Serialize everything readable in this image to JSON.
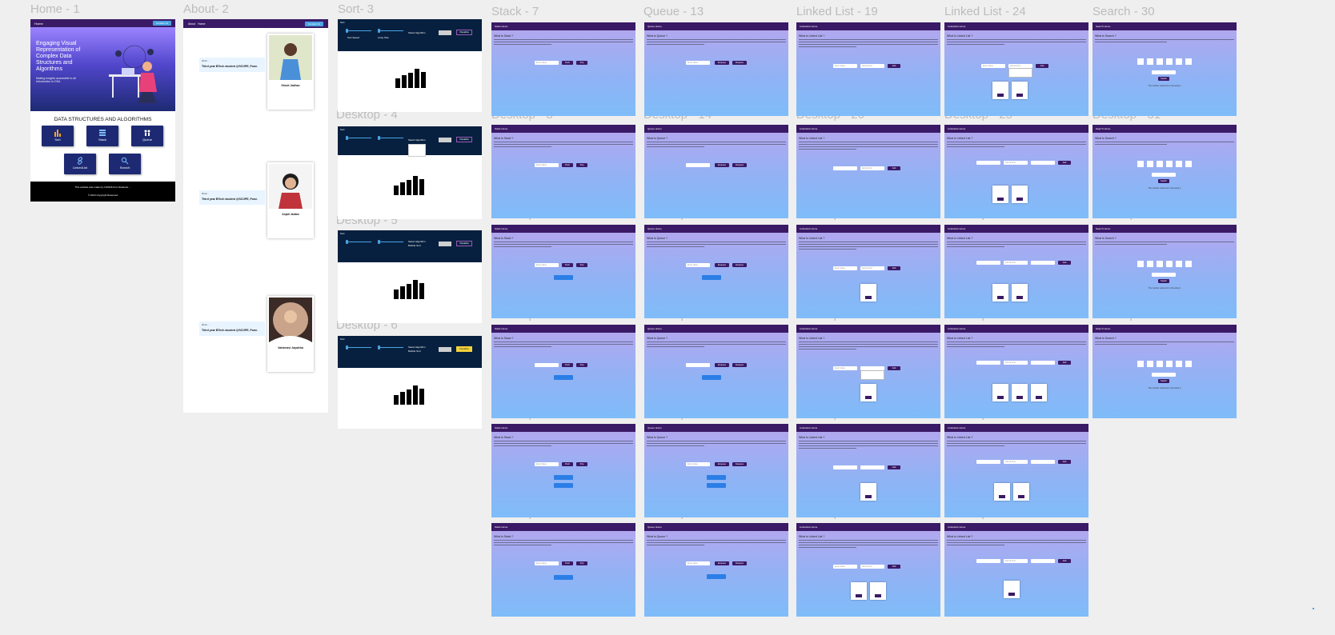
{
  "frame_labels": {
    "home": "Home - 1",
    "about": "About- 2",
    "sort": "Sort- 3",
    "stack": "Stack - 7",
    "queue": "Queue - 13",
    "linked19": "Linked List - 19",
    "linked24": "Linked List - 24",
    "search": "Search - 30",
    "d4": "Desktop - 4",
    "d5": "Desktop - 5",
    "d6": "Desktop - 6",
    "d8": "Desktop - 8",
    "d9": "Desktop - 9",
    "d10": "Desktop - 10",
    "d11": "Desktop - 11",
    "d12": "Desktop - 12",
    "d14": "Desktop - 14",
    "d15": "Desktop - 15",
    "d16": "Desktop - 16",
    "d17": "Desktop - 17",
    "d18": "Desktop - 18",
    "d20": "Desktop - 20",
    "d21": "Desktop - 21",
    "d22": "Desktop - 22",
    "d23": "Desktop - 23",
    "d24": "Desktop - 24",
    "d25": "Desktop - 25",
    "d26": "Desktop - 26",
    "d27": "Desktop - 27",
    "d28": "Desktop - 28",
    "d29": "Desktop - 29",
    "d31": "Desktop - 31",
    "d32": "Desktop - 32",
    "d33": "Desktop - 33"
  },
  "home": {
    "nav_title": "Home",
    "nav_button": "Contact Us",
    "hero_title": "Engaging Visual Representation of Complex Data Structures and Algorithms",
    "hero_sub": "Making insights accessible to all Introduction to DSA",
    "section_title": "DATA STRUCTURES AND ALGORITHMS",
    "cards": {
      "sort": "Sort",
      "stack": "Stack",
      "queue": "Queue",
      "linkedlist": "LinkedList",
      "search": "Search"
    },
    "footer_line1": "This website was made by CS3346 from Students ...",
    "footer_line2": "© 2024 Copyright Reserved"
  },
  "about": {
    "nav_about": "About",
    "nav_home": "Home",
    "nav_button": "Contact Us",
    "quote_heading": "Third year BTech student @SCOPE, Pune.",
    "quote_label": "Shruti ...",
    "people": [
      "Shruti Jadhav",
      "Anjali Jadam",
      "Vaishnavi Jayaleka"
    ]
  },
  "sort": {
    "nav": "Sort",
    "speed_label": "Sort Speed",
    "array_label": "Array Size",
    "algo_label": "Select Algorithm",
    "algo_value": "Bubble Sort",
    "visualize": "Visualize"
  },
  "ds": {
    "stack_nav": "Stack  Home",
    "queue_nav": "Queue  Home",
    "ll_nav": "LinkedList  Home",
    "search_nav": "Search  Home",
    "stack_h": "What is Stack ?",
    "queue_h": "What is Queue ?",
    "ll_h": "What is Linked List ?",
    "search_h": "What is Search ?",
    "enter_value": "Enter Value",
    "push": "Push",
    "pop": "Pop",
    "enqueue": "Enqueue",
    "dequeue": "Dequeue",
    "add": "Add",
    "add_first": "Add at First",
    "search_btn": "Search",
    "search_msg": "The number entered is in the array 4"
  },
  "colors": {
    "nav": "#3a1a66",
    "accent": "#2b7ee6",
    "hero_top": "#9b83ff",
    "hero_bottom": "#1d2a73"
  }
}
